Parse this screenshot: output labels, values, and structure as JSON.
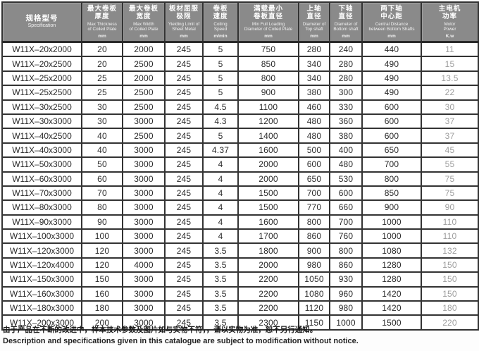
{
  "table": {
    "columns": [
      {
        "id": "model",
        "zh": "规格型号",
        "en": "Specification",
        "unit": ""
      },
      {
        "id": "max-thickness",
        "zh": "最大卷板\n厚度",
        "en": "Max Thickness\nof Coiled Plate",
        "unit": "mm"
      },
      {
        "id": "max-width",
        "zh": "最大卷板\n宽度",
        "en": "Max Width\nof Coiled Plate",
        "unit": "mm"
      },
      {
        "id": "yield-limit",
        "zh": "板材屈服\n极限",
        "en": "Yielding Limit of\nSheet Metal",
        "unit": "mm"
      },
      {
        "id": "coiling-speed",
        "zh": "卷板\n速度",
        "en": "Coiling\nSpeed",
        "unit": "m/min"
      },
      {
        "id": "min-diameter",
        "zh": "满载最小\n卷板直径",
        "en": "Min Full Loading\nDiameter of Coiled Plate",
        "unit": "mm"
      },
      {
        "id": "top-shaft",
        "zh": "上轴\n直径",
        "en": "Diameter of\nTop shaft",
        "unit": "mm"
      },
      {
        "id": "bottom-shaft",
        "zh": "下轴\n直径",
        "en": "Diameter of\nBottom shaft",
        "unit": "mm"
      },
      {
        "id": "center-distance",
        "zh": "两下轴\n中心距",
        "en": "Central Distance\nbetween Bottom Shafts",
        "unit": "mm"
      },
      {
        "id": "motor-power",
        "zh": "主电机\n功率",
        "en": "Motor\nPower",
        "unit": "K.w"
      }
    ],
    "rows": [
      [
        "W11X–20x2000",
        "20",
        "2000",
        "245",
        "5",
        "750",
        "280",
        "240",
        "440",
        "11"
      ],
      [
        "W11X–20x2500",
        "20",
        "2500",
        "245",
        "5",
        "850",
        "340",
        "280",
        "490",
        "15"
      ],
      [
        "W11X–25x2000",
        "25",
        "2000",
        "245",
        "5",
        "800",
        "340",
        "280",
        "490",
        "13.5"
      ],
      [
        "W11X–25x2500",
        "25",
        "2500",
        "245",
        "5",
        "900",
        "380",
        "300",
        "490",
        "22"
      ],
      [
        "W11X–30x2500",
        "30",
        "2500",
        "245",
        "4.5",
        "1100",
        "460",
        "330",
        "600",
        "30"
      ],
      [
        "W11X–30x3000",
        "30",
        "3000",
        "245",
        "4.3",
        "1200",
        "480",
        "360",
        "600",
        "37"
      ],
      [
        "W11X–40x2500",
        "40",
        "2500",
        "245",
        "5",
        "1400",
        "480",
        "380",
        "600",
        "37"
      ],
      [
        "W11X–40x3000",
        "40",
        "3000",
        "245",
        "4.37",
        "1600",
        "500",
        "400",
        "650",
        "45"
      ],
      [
        "W11X–50x3000",
        "50",
        "3000",
        "245",
        "4",
        "2000",
        "600",
        "480",
        "700",
        "55"
      ],
      [
        "W11X–60x3000",
        "60",
        "3000",
        "245",
        "4",
        "2000",
        "650",
        "530",
        "800",
        "75"
      ],
      [
        "W11X–70x3000",
        "70",
        "3000",
        "245",
        "4",
        "1500",
        "700",
        "600",
        "850",
        "75"
      ],
      [
        "W11X–80x3000",
        "80",
        "3000",
        "245",
        "4",
        "1500",
        "770",
        "660",
        "900",
        "90"
      ],
      [
        "W11X–90x3000",
        "90",
        "3000",
        "245",
        "4",
        "1600",
        "800",
        "700",
        "1000",
        "110"
      ],
      [
        "W11X–100x3000",
        "100",
        "3000",
        "245",
        "4",
        "1700",
        "860",
        "760",
        "1000",
        "110"
      ],
      [
        "W11X–120x3000",
        "120",
        "3000",
        "245",
        "3.5",
        "1800",
        "900",
        "800",
        "1080",
        "132"
      ],
      [
        "W11X–120x4000",
        "120",
        "4000",
        "245",
        "3.5",
        "2000",
        "980",
        "860",
        "1280",
        "150"
      ],
      [
        "W11X–150x3000",
        "150",
        "3000",
        "245",
        "3.5",
        "2200",
        "1050",
        "930",
        "1280",
        "150"
      ],
      [
        "W11X–160x3000",
        "160",
        "3000",
        "245",
        "3.5",
        "2200",
        "1080",
        "960",
        "1420",
        "150"
      ],
      [
        "W11X–180x3000",
        "180",
        "3000",
        "245",
        "3.5",
        "2200",
        "1120",
        "980",
        "1420",
        "180"
      ],
      [
        "W11X–200x3000",
        "200",
        "3000",
        "245",
        "3.5",
        "2300",
        "1150",
        "1000",
        "1500",
        "220"
      ]
    ]
  },
  "footer": {
    "zh": "由于产品在不断的改进中，样本技术参数及图片如与实物不符，，请以实物为准，恕不另行通知。",
    "en": "Description and specifications given in this catalogue are subject to modification without notice."
  }
}
